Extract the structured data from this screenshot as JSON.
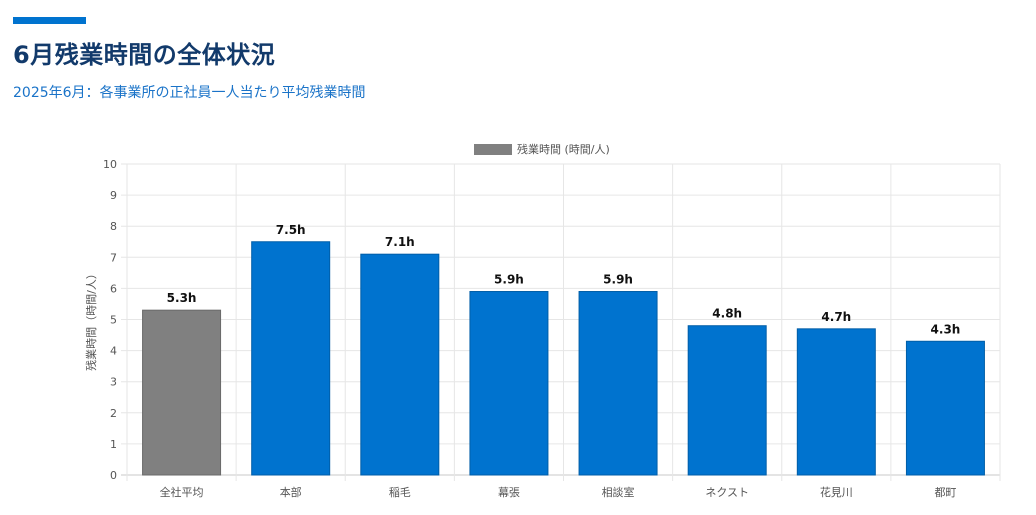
{
  "header": {
    "title": "6月残業時間の全体状況",
    "subtitle": "2025年6月：各事業所の正社員一人当たり平均残業時間"
  },
  "colors": {
    "accent": "#0073cf",
    "average_bar": "#808080",
    "office_bar": "#0073cf",
    "title": "#123a6b",
    "subtitle": "#1a73c8"
  },
  "chart_data": {
    "type": "bar",
    "legend": [
      {
        "label": "残業時間 (時間/人)",
        "color": "#808080"
      }
    ],
    "legend_position": "top-center",
    "ylabel": "残業時間（時間/人）",
    "xlabel": "",
    "ylim": [
      0,
      10
    ],
    "yticks": [
      0,
      1,
      2,
      3,
      4,
      5,
      6,
      7,
      8,
      9,
      10
    ],
    "grid": true,
    "categories": [
      "全社平均",
      "本部",
      "稲毛",
      "幕張",
      "相談室",
      "ネクスト",
      "花見川",
      "都町"
    ],
    "values": [
      5.3,
      7.5,
      7.1,
      5.9,
      5.9,
      4.8,
      4.7,
      4.3
    ],
    "data_labels": [
      "5.3h",
      "7.5h",
      "7.1h",
      "5.9h",
      "5.9h",
      "4.8h",
      "4.7h",
      "4.3h"
    ],
    "bar_colors": [
      "#808080",
      "#0073cf",
      "#0073cf",
      "#0073cf",
      "#0073cf",
      "#0073cf",
      "#0073cf",
      "#0073cf"
    ]
  }
}
